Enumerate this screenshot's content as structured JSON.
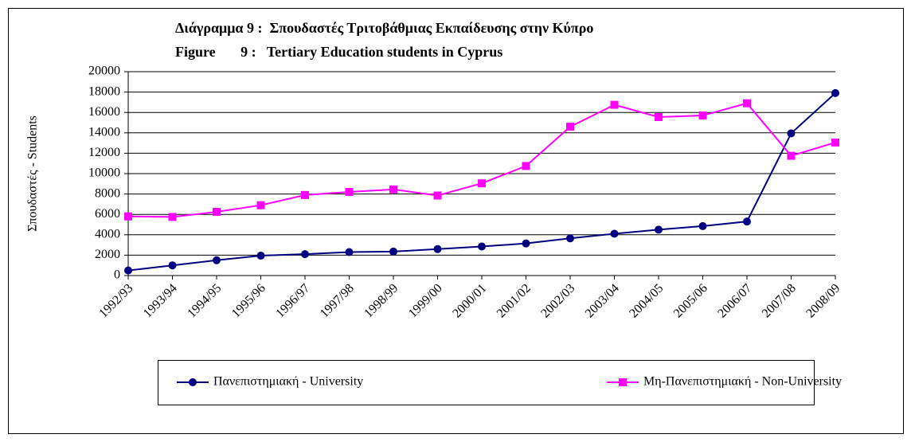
{
  "chart_data": {
    "type": "line",
    "title": "Διάγραμμα 9 :  Σπουδαστές Τριτοβάθμιας Εκπαίδευσης στην Κύπρο",
    "subtitle": "Figure       9 :   Tertiary Education students in Cyprus",
    "y_label": "Σπουδαστές - Students",
    "categories": [
      "1992/93",
      "1993/94",
      "1994/95",
      "1995/96",
      "1996/97",
      "1997/98",
      "1998/99",
      "1999/00",
      "2000/01",
      "2001/02",
      "2002/03",
      "2003/04",
      "2004/05",
      "2005/06",
      "2006/07",
      "2007/08",
      "2008/09"
    ],
    "series": [
      {
        "name": "Πανεπιστημιακή - University",
        "color": "#000080",
        "marker": "circle",
        "values": [
          500,
          1000,
          1500,
          1950,
          2100,
          2300,
          2350,
          2600,
          2850,
          3150,
          3650,
          4100,
          4500,
          4850,
          5300,
          13950,
          17900
        ]
      },
      {
        "name": "Μη-Πανεπιστημιακή - Non-University",
        "color": "#ff00ff",
        "marker": "square",
        "values": [
          5800,
          5750,
          6250,
          6900,
          7900,
          8200,
          8450,
          7850,
          9050,
          10750,
          14600,
          16750,
          15550,
          15700,
          16900,
          11750,
          13050
        ]
      }
    ],
    "ylim": [
      0,
      20000
    ],
    "yticks": [
      0,
      2000,
      4000,
      6000,
      8000,
      10000,
      12000,
      14000,
      16000,
      18000,
      20000
    ],
    "grid": true,
    "legend": "bottom"
  }
}
